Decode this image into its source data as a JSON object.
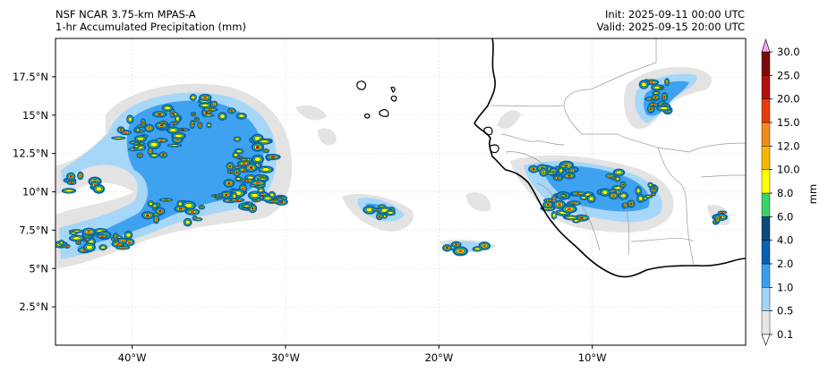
{
  "header": {
    "model": "NSF NCAR 3.75-km MPAS-A",
    "field": "1-hr Accumulated Precipitation (mm)",
    "init": "Init: 2025-09-11 00:00 UTC",
    "valid": "Valid: 2025-09-15 20:00 UTC"
  },
  "map": {
    "extent": {
      "lon": [
        -45,
        0
      ],
      "lat": [
        0,
        20
      ]
    },
    "lat_ticks": [
      {
        "value": 2.5,
        "label": "2.5°N"
      },
      {
        "value": 5,
        "label": "5°N"
      },
      {
        "value": 7.5,
        "label": "7.5°N"
      },
      {
        "value": 10,
        "label": "10°N"
      },
      {
        "value": 12.5,
        "label": "12.5°N"
      },
      {
        "value": 15,
        "label": "15°N"
      },
      {
        "value": 17.5,
        "label": "17.5°N"
      }
    ],
    "lon_ticks": [
      {
        "value": -40,
        "label": "40°W"
      },
      {
        "value": -30,
        "label": "30°W"
      },
      {
        "value": -20,
        "label": "20°W"
      },
      {
        "value": -10,
        "label": "10°W"
      }
    ],
    "gridlines": true
  },
  "colorbar": {
    "label": "mm",
    "extend": "both",
    "levels": [
      "0.1",
      "0.5",
      "1.0",
      "2.0",
      "4.0",
      "6.0",
      "8.0",
      "10.0",
      "12.0",
      "15.0",
      "20.0",
      "25.0",
      "30.0"
    ],
    "colors": [
      "#e6e6e6",
      "#9fd3f9",
      "#3a9ef0",
      "#0a5fb5",
      "#0c4a7e",
      "#39d36a",
      "#ffff00",
      "#f5b800",
      "#f08c1e",
      "#e63c0a",
      "#b40f0f",
      "#7a0a0a",
      "#c026d3",
      "#f0a8f2"
    ]
  }
}
